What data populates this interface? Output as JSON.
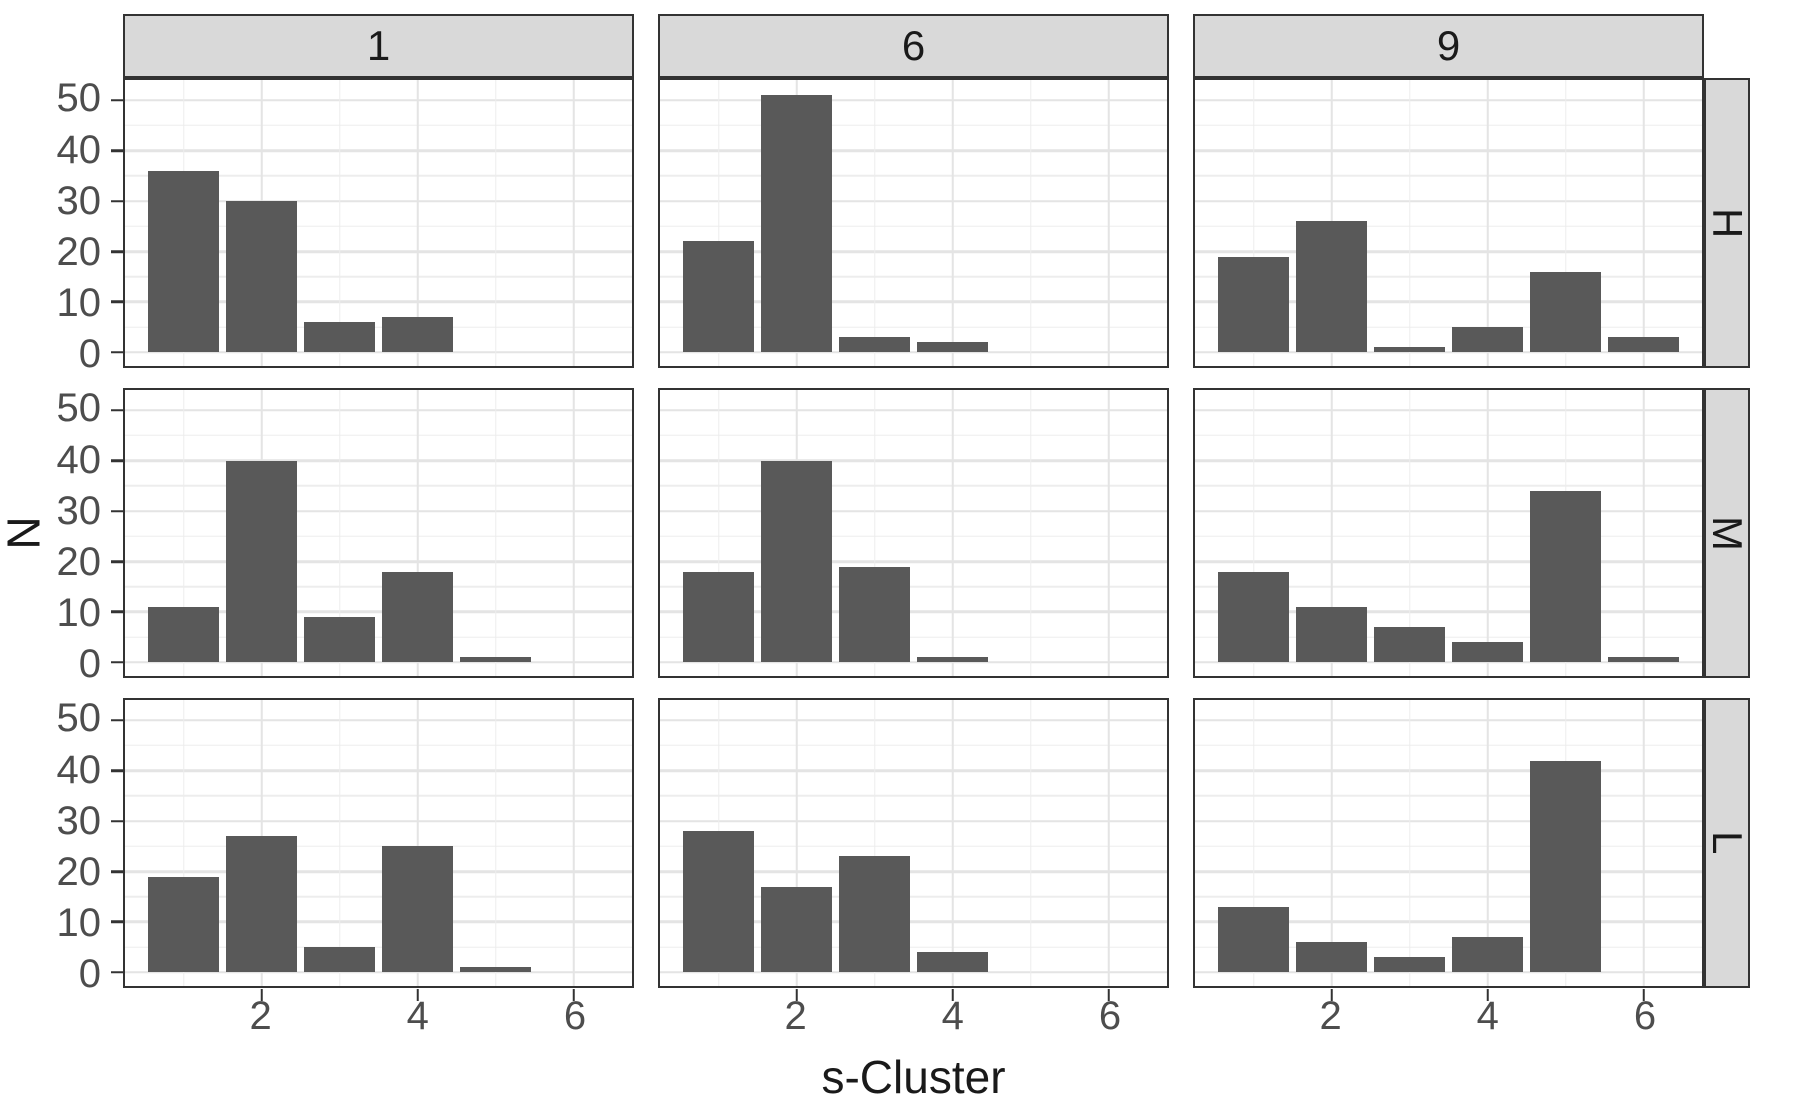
{
  "chart_data": {
    "type": "bar",
    "title": "",
    "xlabel": "s-Cluster",
    "ylabel": "N",
    "legend": "none",
    "grid": true,
    "col_facets": [
      "1",
      "6",
      "9"
    ],
    "row_facets": [
      "H",
      "M",
      "L"
    ],
    "x_values": [
      1,
      2,
      3,
      4,
      5,
      6
    ],
    "x_ticks": [
      2,
      4,
      6
    ],
    "x_minor": [
      1,
      3,
      5
    ],
    "y_ticks": [
      0,
      10,
      20,
      30,
      40,
      50
    ],
    "y_minor": [
      5,
      15,
      25,
      35,
      45
    ],
    "x_range": [
      0.25,
      6.75
    ],
    "y_range": [
      -2.7,
      54.0
    ],
    "bar_width": 0.9,
    "panels": [
      {
        "row": "H",
        "col": "1",
        "values": [
          36,
          30,
          6,
          7,
          0,
          0
        ]
      },
      {
        "row": "H",
        "col": "6",
        "values": [
          22,
          51,
          3,
          2,
          0,
          0
        ]
      },
      {
        "row": "H",
        "col": "9",
        "values": [
          19,
          26,
          1,
          5,
          16,
          3
        ]
      },
      {
        "row": "M",
        "col": "1",
        "values": [
          11,
          40,
          9,
          18,
          1,
          0
        ]
      },
      {
        "row": "M",
        "col": "6",
        "values": [
          18,
          40,
          19,
          1,
          0,
          0
        ]
      },
      {
        "row": "M",
        "col": "9",
        "values": [
          18,
          11,
          7,
          4,
          34,
          1
        ]
      },
      {
        "row": "L",
        "col": "1",
        "values": [
          19,
          27,
          5,
          25,
          1,
          0
        ]
      },
      {
        "row": "L",
        "col": "6",
        "values": [
          28,
          17,
          23,
          4,
          0,
          0
        ]
      },
      {
        "row": "L",
        "col": "9",
        "values": [
          13,
          6,
          3,
          7,
          42,
          0
        ]
      }
    ],
    "colors": {
      "bar": "#595959",
      "strip_bg": "#d9d9d9",
      "grid_major": "#e4e4e4",
      "grid_minor": "#ededed",
      "border": "#333333",
      "axis_text": "#4d4d4d",
      "title_text": "#1a1a1a"
    }
  }
}
